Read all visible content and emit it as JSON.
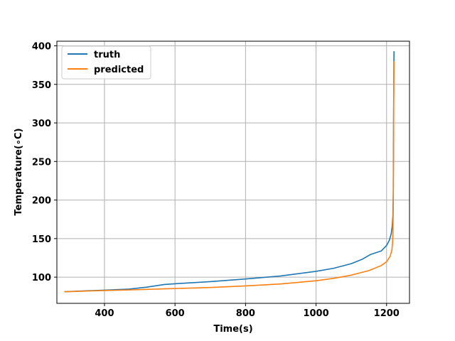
{
  "chart_data": {
    "type": "line",
    "xlabel": "Time(s)",
    "ylabel": "Temperature(∘C)",
    "xlim": [
      265,
      1265
    ],
    "ylim": [
      66,
      406
    ],
    "xticks": [
      400,
      600,
      800,
      1000,
      1200
    ],
    "yticks": [
      100,
      150,
      200,
      250,
      300,
      350,
      400
    ],
    "grid": true,
    "legend_position": "upper-left",
    "series": [
      {
        "name": "truth",
        "color": "#1f77b4",
        "points": [
          [
            286,
            81
          ],
          [
            350,
            82.3
          ],
          [
            400,
            83.1
          ],
          [
            470,
            84.5
          ],
          [
            520,
            87
          ],
          [
            570,
            90.5
          ],
          [
            620,
            92
          ],
          [
            700,
            94.2
          ],
          [
            800,
            97.6
          ],
          [
            900,
            101.5
          ],
          [
            1000,
            107.5
          ],
          [
            1050,
            111.5
          ],
          [
            1100,
            117.5
          ],
          [
            1130,
            123
          ],
          [
            1155,
            129.5
          ],
          [
            1185,
            134
          ],
          [
            1200,
            141
          ],
          [
            1208,
            148
          ],
          [
            1213,
            156
          ],
          [
            1216,
            166
          ],
          [
            1218,
            180
          ],
          [
            1219,
            210
          ],
          [
            1219.5,
            260
          ],
          [
            1220,
            320
          ],
          [
            1220.5,
            365
          ],
          [
            1221,
            393
          ]
        ]
      },
      {
        "name": "predicted",
        "color": "#ff7f0e",
        "points": [
          [
            286,
            81
          ],
          [
            350,
            82
          ],
          [
            400,
            82.6
          ],
          [
            470,
            83.4
          ],
          [
            570,
            84.8
          ],
          [
            700,
            86.6
          ],
          [
            800,
            88.6
          ],
          [
            900,
            91.2
          ],
          [
            1000,
            95.3
          ],
          [
            1050,
            98.4
          ],
          [
            1100,
            102.6
          ],
          [
            1150,
            108.5
          ],
          [
            1185,
            115
          ],
          [
            1200,
            120
          ],
          [
            1210,
            127
          ],
          [
            1215,
            135
          ],
          [
            1217,
            145
          ],
          [
            1218,
            160
          ],
          [
            1219,
            190
          ],
          [
            1219.5,
            240
          ],
          [
            1220,
            300
          ],
          [
            1220.5,
            345
          ],
          [
            1221,
            380
          ]
        ]
      }
    ]
  }
}
